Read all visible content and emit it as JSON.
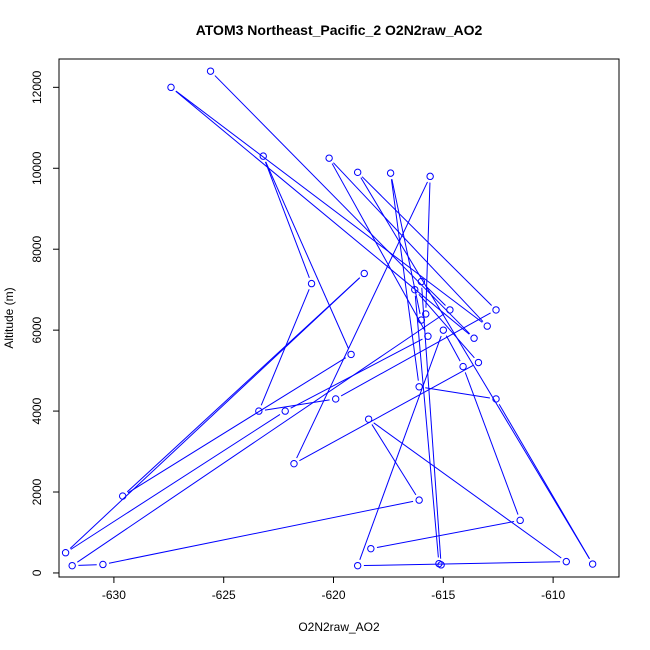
{
  "chart_data": {
    "type": "line",
    "title": "ATOM3 Northeast_Pacific_2 O2N2raw_AO2",
    "xlabel": "O2N2raw_AO2",
    "ylabel": "Altitude (m)",
    "xlim": [
      -632.5,
      -607.0
    ],
    "ylim": [
      -100,
      12700
    ],
    "x_ticks": [
      -630,
      -625,
      -620,
      -615,
      -610
    ],
    "y_ticks": [
      0,
      2000,
      4000,
      6000,
      8000,
      10000,
      12000
    ],
    "grid": false,
    "line_color": "#0000ff",
    "marker": "open-circle",
    "series": [
      {
        "x": [
          -625.6,
          -613.6,
          -627.4,
          -613.0,
          -620.2,
          -615.7,
          -622.2,
          -632.2,
          -618.6,
          -629.6,
          -619.2,
          -623.2,
          -621.0,
          -623.4,
          -619.9,
          -612.6,
          -618.9,
          -608.2,
          -612.6,
          -616.1,
          -617.4,
          -616.0,
          -615.8,
          -615.6,
          -621.8,
          -613.4,
          -616.3,
          -615.2,
          -615.1,
          -616.0,
          -614.7,
          -631.9,
          -630.5,
          -616.1,
          -618.4,
          -609.4,
          -618.9,
          -615.0,
          -614.1,
          -611.5,
          -618.3
        ],
        "y": [
          12400,
          5800,
          12000,
          6100,
          10250,
          5850,
          4000,
          500,
          7400,
          1900,
          5400,
          10300,
          7150,
          4000,
          4300,
          6500,
          9900,
          220,
          4300,
          4600,
          9880,
          6250,
          6400,
          9800,
          2700,
          5200,
          7000,
          230,
          200,
          7200,
          6500,
          180,
          210,
          1800,
          3800,
          280,
          180,
          6000,
          5100,
          1300,
          600
        ]
      }
    ]
  }
}
